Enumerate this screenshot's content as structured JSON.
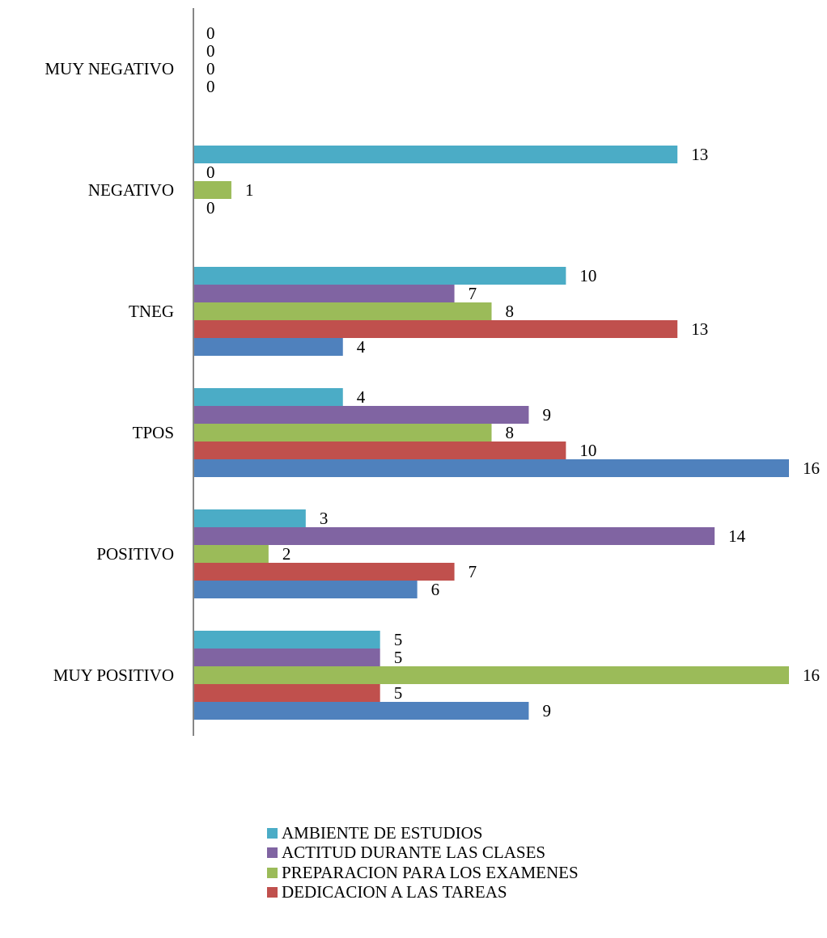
{
  "chart_data": {
    "type": "bar",
    "orientation": "horizontal",
    "title": "",
    "xlabel": "",
    "ylabel": "",
    "categories": [
      "MUY POSITIVO",
      "POSITIVO",
      "TPOS",
      "TNEG",
      "NEGATIVO",
      "MUY NEGATIVO"
    ],
    "series": [
      {
        "name": "",
        "color": "#4F81BD",
        "values": [
          9,
          6,
          16,
          4,
          null,
          null
        ]
      },
      {
        "name": "DEDICACION A LAS TAREAS",
        "color": "#C0504D",
        "values": [
          5,
          7,
          10,
          13,
          0,
          0
        ]
      },
      {
        "name": "PREPARACION PARA LOS EXAMENES",
        "color": "#9BBB59",
        "values": [
          16,
          2,
          8,
          8,
          1,
          0
        ]
      },
      {
        "name": "ACTITUD DURANTE LAS CLASES",
        "color": "#8064A2",
        "values": [
          5,
          14,
          9,
          7,
          0,
          0
        ]
      },
      {
        "name": "AMBIENTE DE ESTUDIOS",
        "color": "#4BACC6",
        "values": [
          5,
          3,
          4,
          10,
          13,
          0
        ]
      }
    ],
    "xlim": [
      0,
      16
    ],
    "grid": false,
    "data_labels": true,
    "legend_position": "bottom"
  }
}
